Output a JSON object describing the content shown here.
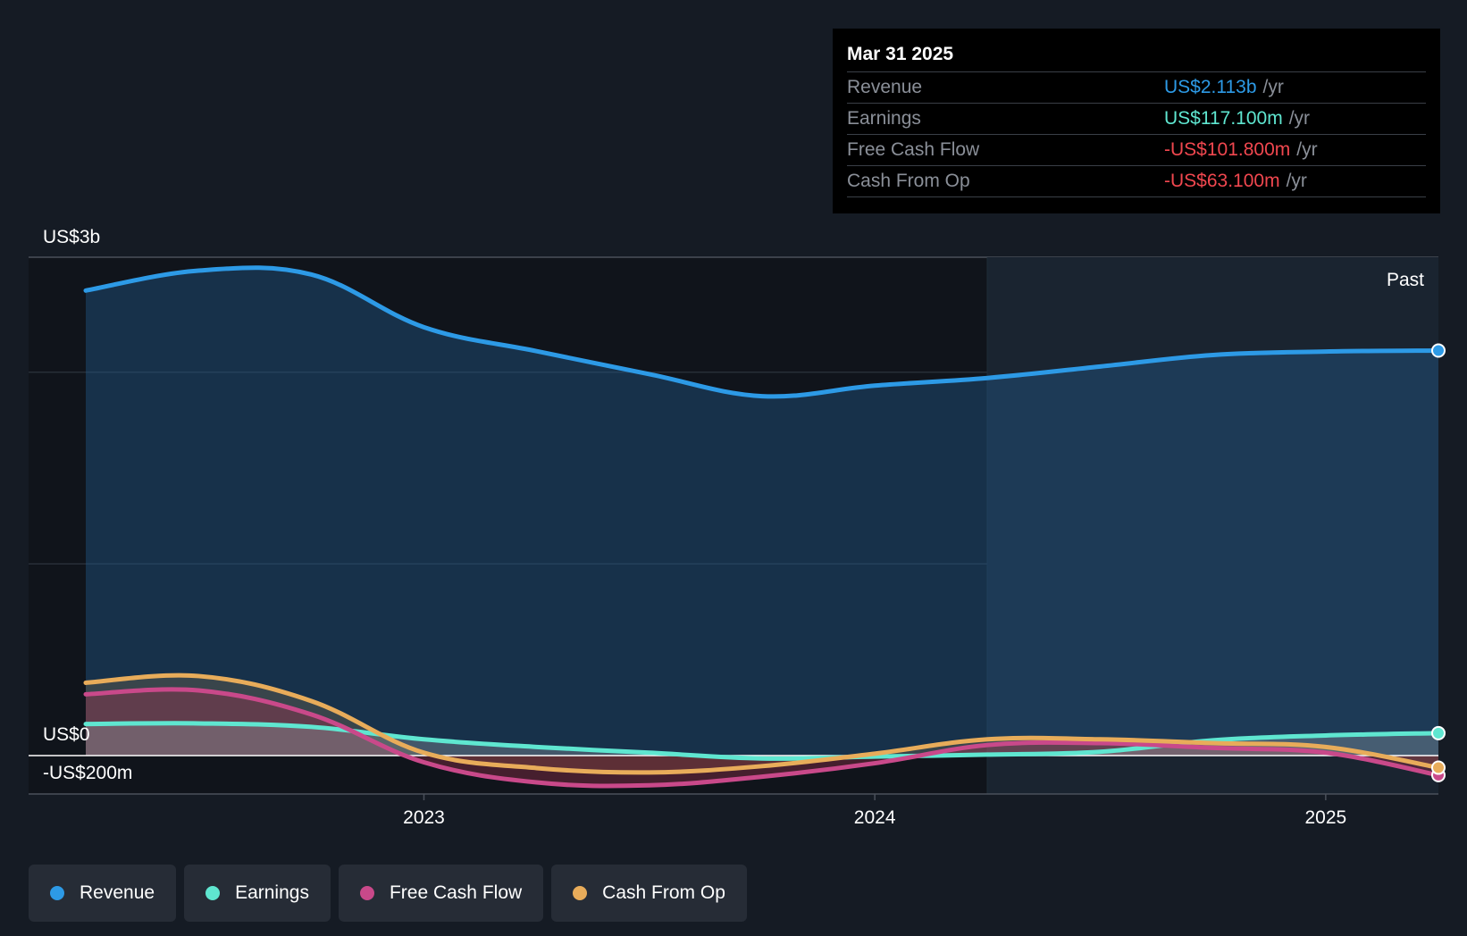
{
  "tooltip": {
    "date": "Mar 31 2025",
    "rows": [
      {
        "label": "Revenue",
        "value": "US$2.113b",
        "unit": "/yr",
        "color": "#2d9ae6"
      },
      {
        "label": "Earnings",
        "value": "US$117.100m",
        "unit": "/yr",
        "color": "#5fe6d0"
      },
      {
        "label": "Free Cash Flow",
        "value": "-US$101.800m",
        "unit": "/yr",
        "color": "#f0474f"
      },
      {
        "label": "Cash From Op",
        "value": "-US$63.100m",
        "unit": "/yr",
        "color": "#f0474f"
      }
    ]
  },
  "legend": [
    {
      "label": "Revenue",
      "color": "#2d9ae6"
    },
    {
      "label": "Earnings",
      "color": "#5fe6d0"
    },
    {
      "label": "Free Cash Flow",
      "color": "#c9498a"
    },
    {
      "label": "Cash From Op",
      "color": "#e8ac5a"
    }
  ],
  "chart_data": {
    "type": "area",
    "y_labels": [
      "US$3b",
      "US$0",
      "-US$200m"
    ],
    "x_tick_labels": [
      {
        "label": "2023",
        "x": 2023.0
      },
      {
        "label": "2024",
        "x": 2024.0
      },
      {
        "label": "2025",
        "x": 2025.0
      }
    ],
    "past_label": "Past",
    "past_start": 2024.25,
    "ylim": [
      -200,
      2600
    ],
    "xlim": [
      2022.3,
      2025.25
    ],
    "gridlines": [
      2600,
      2000,
      1000,
      0
    ],
    "units": "US$ millions",
    "series": [
      {
        "name": "Revenue",
        "color": "#2d9ae6",
        "x": [
          2022.25,
          2022.5,
          2022.75,
          2023.0,
          2023.25,
          2023.5,
          2023.75,
          2024.0,
          2024.25,
          2024.5,
          2024.75,
          2025.0,
          2025.25
        ],
        "values": [
          2426,
          2530,
          2510,
          2235,
          2110,
          1990,
          1875,
          1930,
          1970,
          2030,
          2090,
          2108,
          2113
        ]
      },
      {
        "name": "Earnings",
        "color": "#5fe6d0",
        "x": [
          2022.25,
          2022.5,
          2022.75,
          2023.0,
          2023.25,
          2023.5,
          2023.75,
          2024.0,
          2024.25,
          2024.5,
          2024.75,
          2025.0,
          2025.25
        ],
        "values": [
          165,
          168,
          150,
          85,
          45,
          15,
          -15,
          -5,
          5,
          20,
          80,
          105,
          117.1
        ]
      },
      {
        "name": "Free Cash Flow",
        "color": "#c9498a",
        "x": [
          2022.25,
          2022.5,
          2022.75,
          2023.0,
          2023.25,
          2023.5,
          2023.75,
          2024.0,
          2024.25,
          2024.5,
          2024.75,
          2025.0,
          2025.25
        ],
        "values": [
          320,
          340,
          215,
          -35,
          -140,
          -155,
          -110,
          -40,
          55,
          65,
          40,
          15,
          -101.8
        ]
      },
      {
        "name": "Cash From Op",
        "color": "#e8ac5a",
        "x": [
          2022.25,
          2022.5,
          2022.75,
          2023.0,
          2023.25,
          2023.5,
          2023.75,
          2024.0,
          2024.25,
          2024.5,
          2024.75,
          2025.0,
          2025.25
        ],
        "values": [
          380,
          415,
          285,
          15,
          -65,
          -88,
          -55,
          10,
          85,
          85,
          65,
          45,
          -63.1
        ]
      }
    ]
  }
}
